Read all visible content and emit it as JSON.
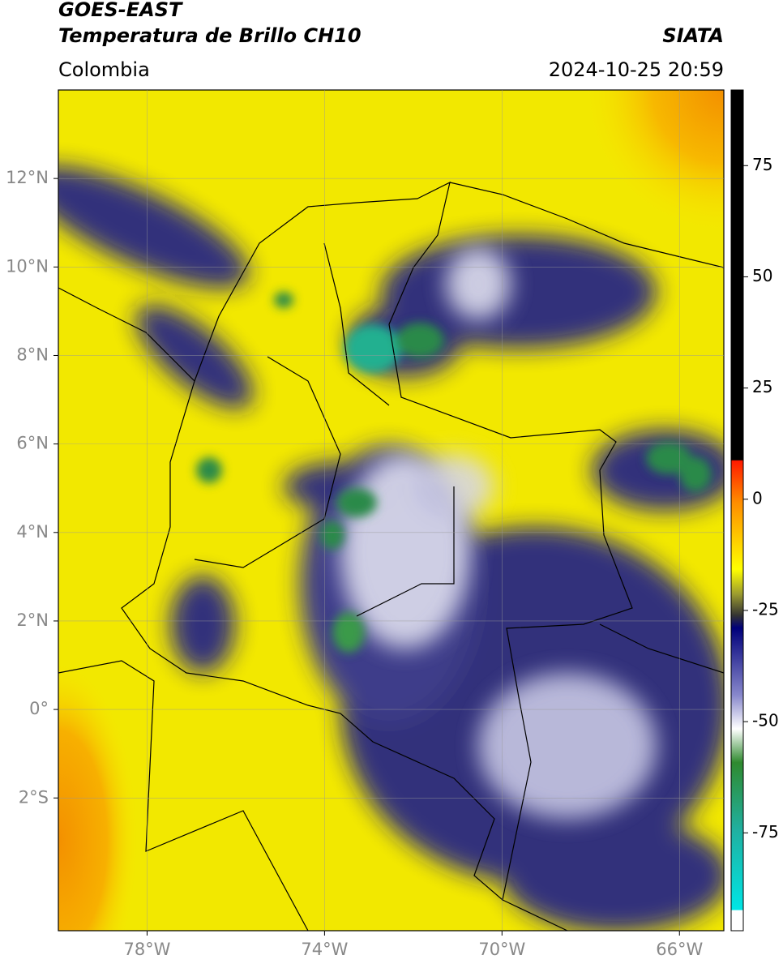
{
  "header": {
    "title": "GOES-EAST",
    "subtitle": "Temperatura de Brillo CH10",
    "region": "Colombia",
    "source": "SIATA",
    "datetime": "2024-10-25 20:59"
  },
  "map": {
    "lon_range": [
      -80,
      -65
    ],
    "lat_range": [
      -5,
      14
    ],
    "grid": true,
    "lon_ticks": [
      {
        "value": -78,
        "label": "78°W"
      },
      {
        "value": -74,
        "label": "74°W"
      },
      {
        "value": -70,
        "label": "70°W"
      },
      {
        "value": -66,
        "label": "66°W"
      }
    ],
    "lat_ticks": [
      {
        "value": 12,
        "label": "12°N"
      },
      {
        "value": 10,
        "label": "10°N"
      },
      {
        "value": 8,
        "label": "8°N"
      },
      {
        "value": 6,
        "label": "6°N"
      },
      {
        "value": 4,
        "label": "4°N"
      },
      {
        "value": 2,
        "label": "2°N"
      },
      {
        "value": 0,
        "label": "0°"
      },
      {
        "value": -2,
        "label": "2°S"
      }
    ]
  },
  "colorbar": {
    "range": [
      -97,
      92
    ],
    "ticks": [
      75,
      50,
      25,
      0,
      -25,
      -50,
      -75
    ]
  }
}
